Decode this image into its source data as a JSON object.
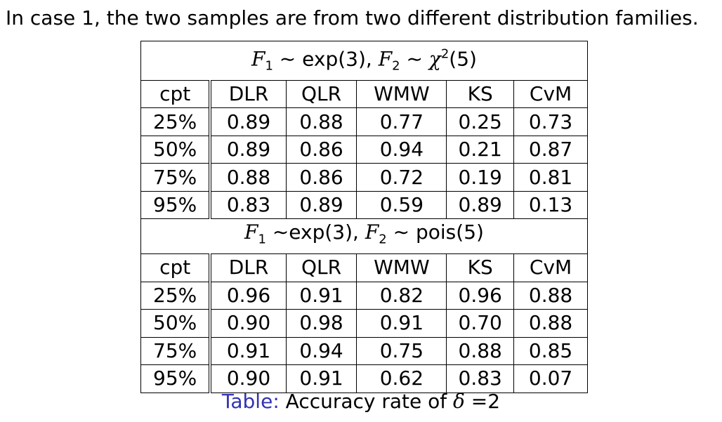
{
  "intro": "In case 1, the two samples are from two different distribution families.",
  "columns": [
    "cpt",
    "DLR",
    "QLR",
    "WMW",
    "KS",
    "CvM"
  ],
  "panels": [
    {
      "title": {
        "f1_letter": "F",
        "f1_sub": "1",
        "f1_rel": " ∼ exp(3), ",
        "f2_letter": "F",
        "f2_sub": "2",
        "f2_rel": " ∼ ",
        "f2_dist": "χ",
        "f2_sup": "2",
        "f2_tail": "(5)"
      },
      "rows": [
        [
          "25%",
          "0.89",
          "0.88",
          "0.77",
          "0.25",
          "0.73"
        ],
        [
          "50%",
          "0.89",
          "0.86",
          "0.94",
          "0.21",
          "0.87"
        ],
        [
          "75%",
          "0.88",
          "0.86",
          "0.72",
          "0.19",
          "0.81"
        ],
        [
          "95%",
          "0.83",
          "0.89",
          "0.59",
          "0.89",
          "0.13"
        ]
      ]
    },
    {
      "title": {
        "f1_letter": "F",
        "f1_sub": "1",
        "f1_rel": " ∼exp(3), ",
        "f2_letter": "F",
        "f2_sub": "2",
        "f2_rel": " ∼ pois(5)"
      },
      "rows": [
        [
          "25%",
          "0.96",
          "0.91",
          "0.82",
          "0.96",
          "0.88"
        ],
        [
          "50%",
          "0.90",
          "0.98",
          "0.91",
          "0.70",
          "0.88"
        ],
        [
          "75%",
          "0.91",
          "0.94",
          "0.75",
          "0.88",
          "0.85"
        ],
        [
          "95%",
          "0.90",
          "0.91",
          "0.62",
          "0.83",
          "0.07"
        ]
      ]
    }
  ],
  "caption": {
    "label": "Table:",
    "text_pre": " Accuracy rate of ",
    "delta": "δ",
    "text_post": " =2"
  },
  "colors": {
    "caption_label": "#3333b2",
    "text": "#000000"
  }
}
